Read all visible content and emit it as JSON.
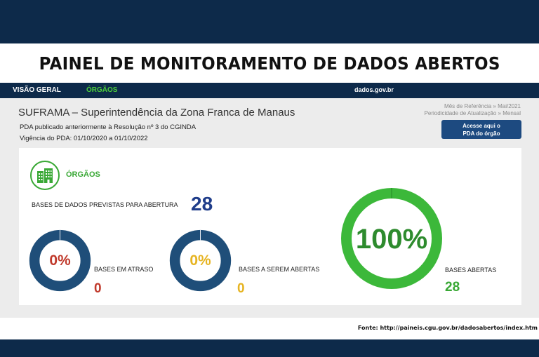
{
  "header": {
    "title": "PAINEL DE MONITORAMENTO DE DADOS ABERTOS"
  },
  "nav": {
    "visao_geral": "VISÃO GERAL",
    "orgaos": "ÓRGÃOS",
    "dados_gov": "dados.gov.br"
  },
  "org": {
    "name": "SUFRAMA – Superintendência da Zona Franca de Manaus",
    "pda_line": "PDA publicado anteriormente à Resolução nº 3 do CGINDA",
    "vigencia": "Vigência do PDA: 01/10/2020 a 01/10/2022",
    "mes_ref": "Mês de Referência » Mai/2021",
    "periodicidade": "Periodicidade de Atualização » Mensal",
    "access_button_line1": "Acesse aqui o",
    "access_button_line2": "PDA do órgão"
  },
  "card": {
    "section_label": "ÓRGÃOS",
    "section_icon": "building-icon",
    "prevista_label": "BASES DE DADOS PREVISTAS PARA ABERTURA",
    "prevista_value": "28",
    "atraso": {
      "percent_text": "0%",
      "percent": 0,
      "label": "BASES EM ATRASO",
      "value": "0",
      "color": "#c0392b",
      "ring_color": "#1f4e79"
    },
    "a_abrir": {
      "percent_text": "0%",
      "percent": 0,
      "label": "BASES A SEREM ABERTAS",
      "value": "0",
      "color": "#e6b422",
      "ring_color": "#1f4e79"
    },
    "abertas": {
      "percent_text": "100%",
      "percent": 100,
      "label": "BASES ABERTAS",
      "value": "28",
      "color": "#39a835",
      "ring_color": "#3cb83a"
    }
  },
  "footer": {
    "fonte": "Fonte: http://paineis.cgu.gov.br/dadosabertos/index.htm"
  },
  "colors": {
    "navy": "#0d2a4a",
    "green": "#39a835",
    "blue_value": "#1f3d8a"
  }
}
